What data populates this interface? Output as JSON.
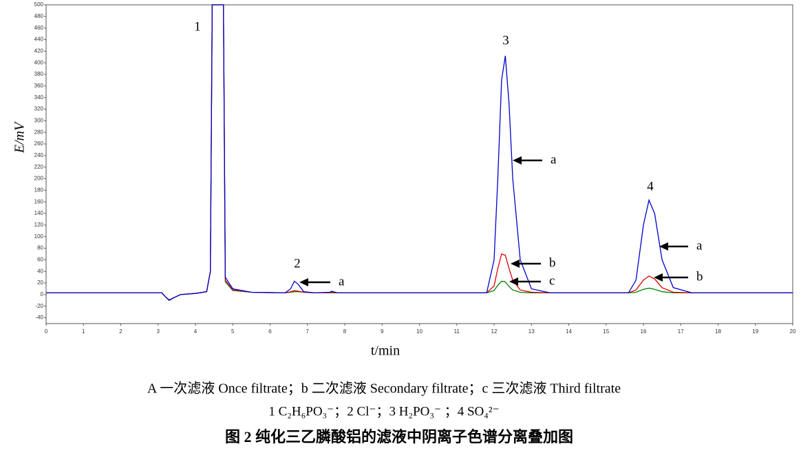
{
  "chart_data": {
    "type": "line",
    "y_label": "E/mV",
    "x_label": "t/min",
    "caption": [
      "A 一次滤液  Once filtrate；b 二次滤液  Secondary filtrate；c  三次滤液  Third filtrate",
      "1 C₂H₆PO₃⁻；2 Cl⁻；3 H₂PO₃⁻ ；4 SO₄²⁻"
    ],
    "title": "图 2  纯化三乙膦酸铝的滤液中阴离子色谱分离叠加图",
    "peak_labels": [
      "1",
      "2",
      "3",
      "4"
    ],
    "x": [
      0,
      3.1,
      3.2,
      3.3,
      3.4,
      3.6,
      4.0,
      4.3,
      4.4,
      4.45,
      4.5,
      4.7,
      4.75,
      4.8,
      5.0,
      5.5,
      6.4,
      6.55,
      6.65,
      6.75,
      6.9,
      7.2,
      7.6,
      7.65,
      7.8,
      11.8,
      12.0,
      12.1,
      12.2,
      12.3,
      12.4,
      12.5,
      12.7,
      13.0,
      13.5,
      15.6,
      15.8,
      16.0,
      16.15,
      16.3,
      16.5,
      16.8,
      17.3,
      20
    ],
    "series": [
      {
        "name": "a",
        "color": "#0000cc",
        "values": [
          3,
          3,
          -4,
          -10,
          -6,
          0,
          2,
          5,
          40,
          500,
          500,
          500,
          500,
          30,
          10,
          4,
          3,
          10,
          23,
          18,
          5,
          3,
          4,
          6,
          3,
          3,
          60,
          200,
          370,
          412,
          330,
          200,
          60,
          10,
          3,
          3,
          25,
          120,
          163,
          140,
          60,
          12,
          3,
          3
        ]
      },
      {
        "name": "b",
        "color": "#dd0000",
        "values": [
          3,
          3,
          -4,
          -10,
          -6,
          0,
          2,
          5,
          40,
          500,
          500,
          500,
          500,
          25,
          8,
          4,
          3,
          5,
          7,
          6,
          4,
          3,
          3,
          4,
          3,
          3,
          15,
          45,
          70,
          68,
          45,
          25,
          8,
          4,
          3,
          3,
          8,
          25,
          32,
          27,
          12,
          4,
          3,
          3
        ]
      },
      {
        "name": "c",
        "color": "#008000",
        "values": [
          3,
          3,
          -4,
          -9,
          -6,
          0,
          2,
          5,
          40,
          500,
          500,
          500,
          500,
          22,
          7,
          4,
          3,
          4,
          5,
          5,
          4,
          3,
          3,
          3,
          3,
          3,
          7,
          16,
          23,
          22,
          14,
          8,
          4,
          3,
          3,
          3,
          4,
          9,
          11,
          9,
          5,
          3,
          3,
          3
        ]
      }
    ],
    "xlim": [
      0,
      20
    ],
    "xticks": [
      0,
      1,
      2,
      3,
      4,
      5,
      6,
      7,
      8,
      9,
      10,
      11,
      12,
      13,
      14,
      15,
      16,
      17,
      18,
      19,
      20
    ],
    "ylim": [
      -50,
      500
    ],
    "yticks": [
      -40,
      -20,
      0,
      20,
      40,
      60,
      80,
      100,
      120,
      140,
      160,
      180,
      200,
      220,
      240,
      260,
      280,
      300,
      320,
      340,
      360,
      380,
      400,
      420,
      440,
      460,
      480,
      500
    ]
  }
}
